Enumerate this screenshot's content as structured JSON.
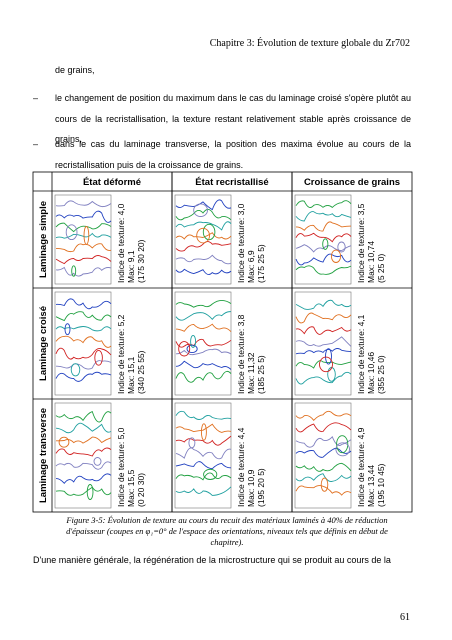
{
  "header": {
    "title": "Chapitre 3: Évolution de texture globale du Zr702"
  },
  "intro": "de grains,",
  "bullets": [
    {
      "marker": "–",
      "text": "le changement de position du maximum dans le cas du laminage croisé s'opère plutôt au cours de la recristallisation, la texture restant relativement stable après croissance de grains,"
    },
    {
      "marker": "–",
      "text": "dans le cas du laminage transverse, la position des maxima évolue au cours de la recristallisation puis de la croissance de grains."
    }
  ],
  "figure": {
    "columns": [
      "État déformé",
      "État recristallisé",
      "Croissance de grains"
    ],
    "rows": [
      {
        "label": "Laminage simple",
        "cells": [
          [
            "Indice de texture: 4,0",
            "Max: 9,1",
            "(175 30 20)"
          ],
          [
            "Indice de texture: 3,0",
            "Max: 6,9",
            "(175 25 5)"
          ],
          [
            "Indice de texture: 3,5",
            "Max: 10,74",
            "(5 25 0)"
          ]
        ]
      },
      {
        "label": "Laminage croisé",
        "cells": [
          [
            "Indice de texture: 5,2",
            "Max: 15,1",
            "(340 25 55)"
          ],
          [
            "Indice de texture: 3,8",
            "Max: 11,32",
            "(185 25 5)"
          ],
          [
            "Indice de texture: 4,1",
            "Max: 10,46",
            "(355 25 0)"
          ]
        ]
      },
      {
        "label": "Laminage transverse",
        "cells": [
          [
            "Indice de texture: 5,0",
            "Max: 15,5",
            "(0 20 30)"
          ],
          [
            "Indice de texture: 4,4",
            "Max: 10,9",
            "(195 20 5)"
          ],
          [
            "Indice de texture: 4,9",
            "Max: 13,44",
            "(195 10 45)"
          ]
        ]
      }
    ],
    "caption": "Figure 3-5: Évolution de texture au cours du recuit des matériaux laminés à 40% de réduction d'épaisseur (coupes en φ₁=0° de l'espace des orientations, niveaux tels que définis en début de chapitre)."
  },
  "paragraph": "D'une manière générale, la régénération de la microstructure qui se produit au cours de la",
  "page_number": "61"
}
